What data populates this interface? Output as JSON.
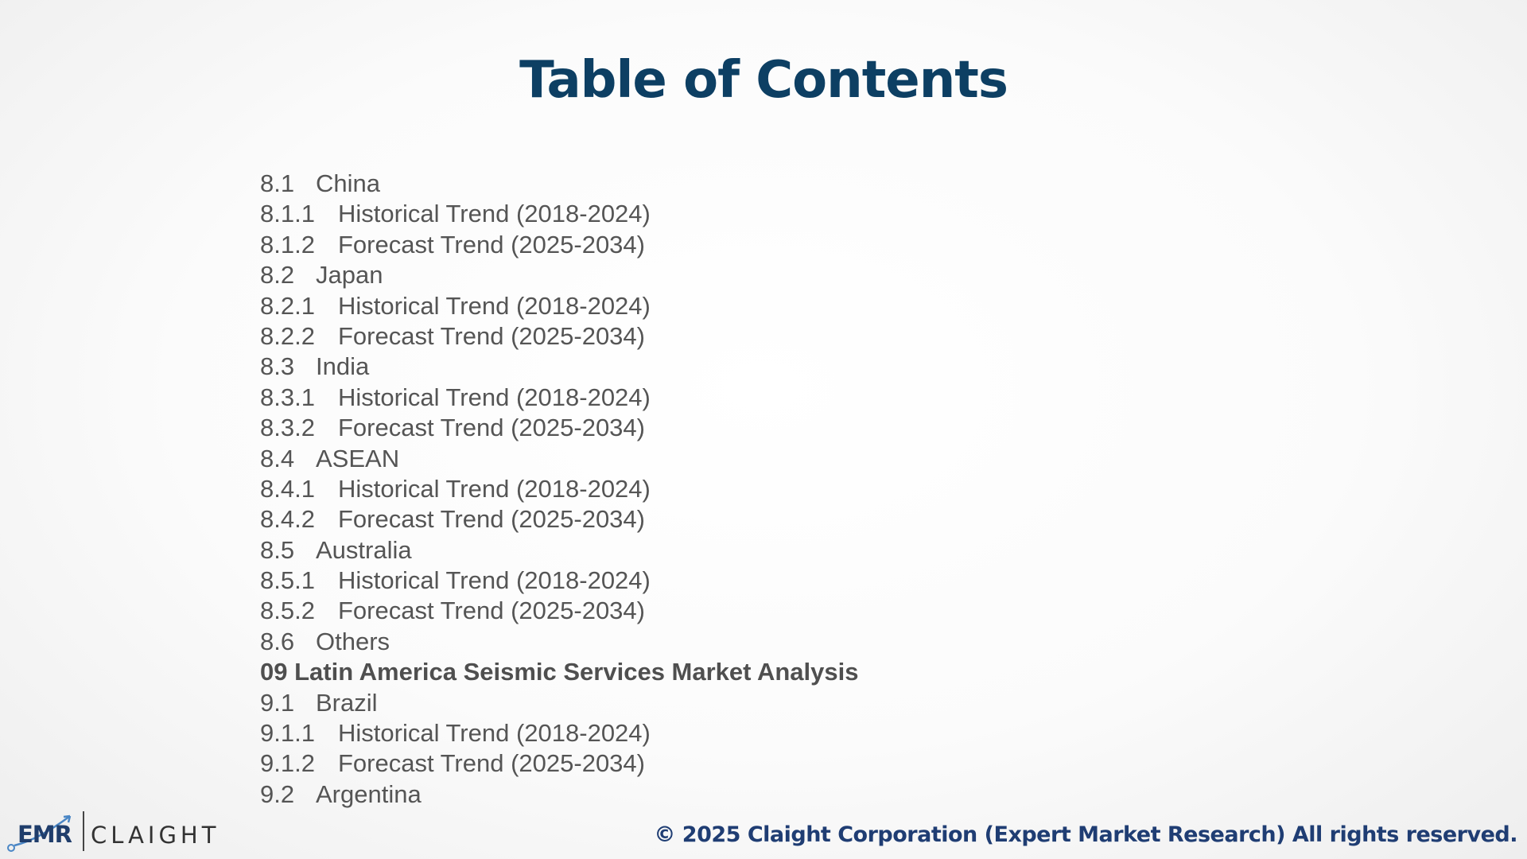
{
  "slide": {
    "title": "Table of Contents"
  },
  "toc": [
    {
      "number": "8.1",
      "label": "China",
      "level": 2
    },
    {
      "number": "8.1.1",
      "label": "Historical Trend (2018-2024)",
      "level": 3
    },
    {
      "number": "8.1.2",
      "label": "Forecast Trend (2025-2034)",
      "level": 3
    },
    {
      "number": "8.2",
      "label": "Japan",
      "level": 2
    },
    {
      "number": "8.2.1",
      "label": "Historical Trend (2018-2024)",
      "level": 3
    },
    {
      "number": "8.2.2",
      "label": "Forecast Trend (2025-2034)",
      "level": 3
    },
    {
      "number": "8.3",
      "label": "India",
      "level": 2
    },
    {
      "number": "8.3.1",
      "label": "Historical Trend (2018-2024)",
      "level": 3
    },
    {
      "number": "8.3.2",
      "label": "Forecast Trend (2025-2034)",
      "level": 3
    },
    {
      "number": "8.4",
      "label": "ASEAN",
      "level": 2
    },
    {
      "number": "8.4.1",
      "label": "Historical Trend (2018-2024)",
      "level": 3
    },
    {
      "number": "8.4.2",
      "label": "Forecast Trend (2025-2034)",
      "level": 3
    },
    {
      "number": "8.5",
      "label": "Australia",
      "level": 2
    },
    {
      "number": "8.5.1",
      "label": "Historical Trend (2018-2024)",
      "level": 3
    },
    {
      "number": "8.5.2",
      "label": "Forecast Trend (2025-2034)",
      "level": 3
    },
    {
      "number": "8.6",
      "label": "Others",
      "level": 2
    },
    {
      "number": "09",
      "label": "Latin America Seismic Services Market Analysis",
      "level": 1
    },
    {
      "number": "9.1",
      "label": "Brazil",
      "level": 2
    },
    {
      "number": "9.1.1",
      "label": "Historical Trend (2018-2024)",
      "level": 3
    },
    {
      "number": "9.1.2",
      "label": "Forecast Trend (2025-2034)",
      "level": 3
    },
    {
      "number": "9.2",
      "label": "Argentina",
      "level": 2
    }
  ],
  "footer": {
    "logo_left": "EMR",
    "logo_right": "CLAIGHT",
    "copyright": "© 2025 Claight Corporation (Expert Market Research) All rights reserved."
  },
  "colors": {
    "title": "#0d3f63",
    "body_text": "#555555",
    "footer_text": "#1f3d73"
  }
}
